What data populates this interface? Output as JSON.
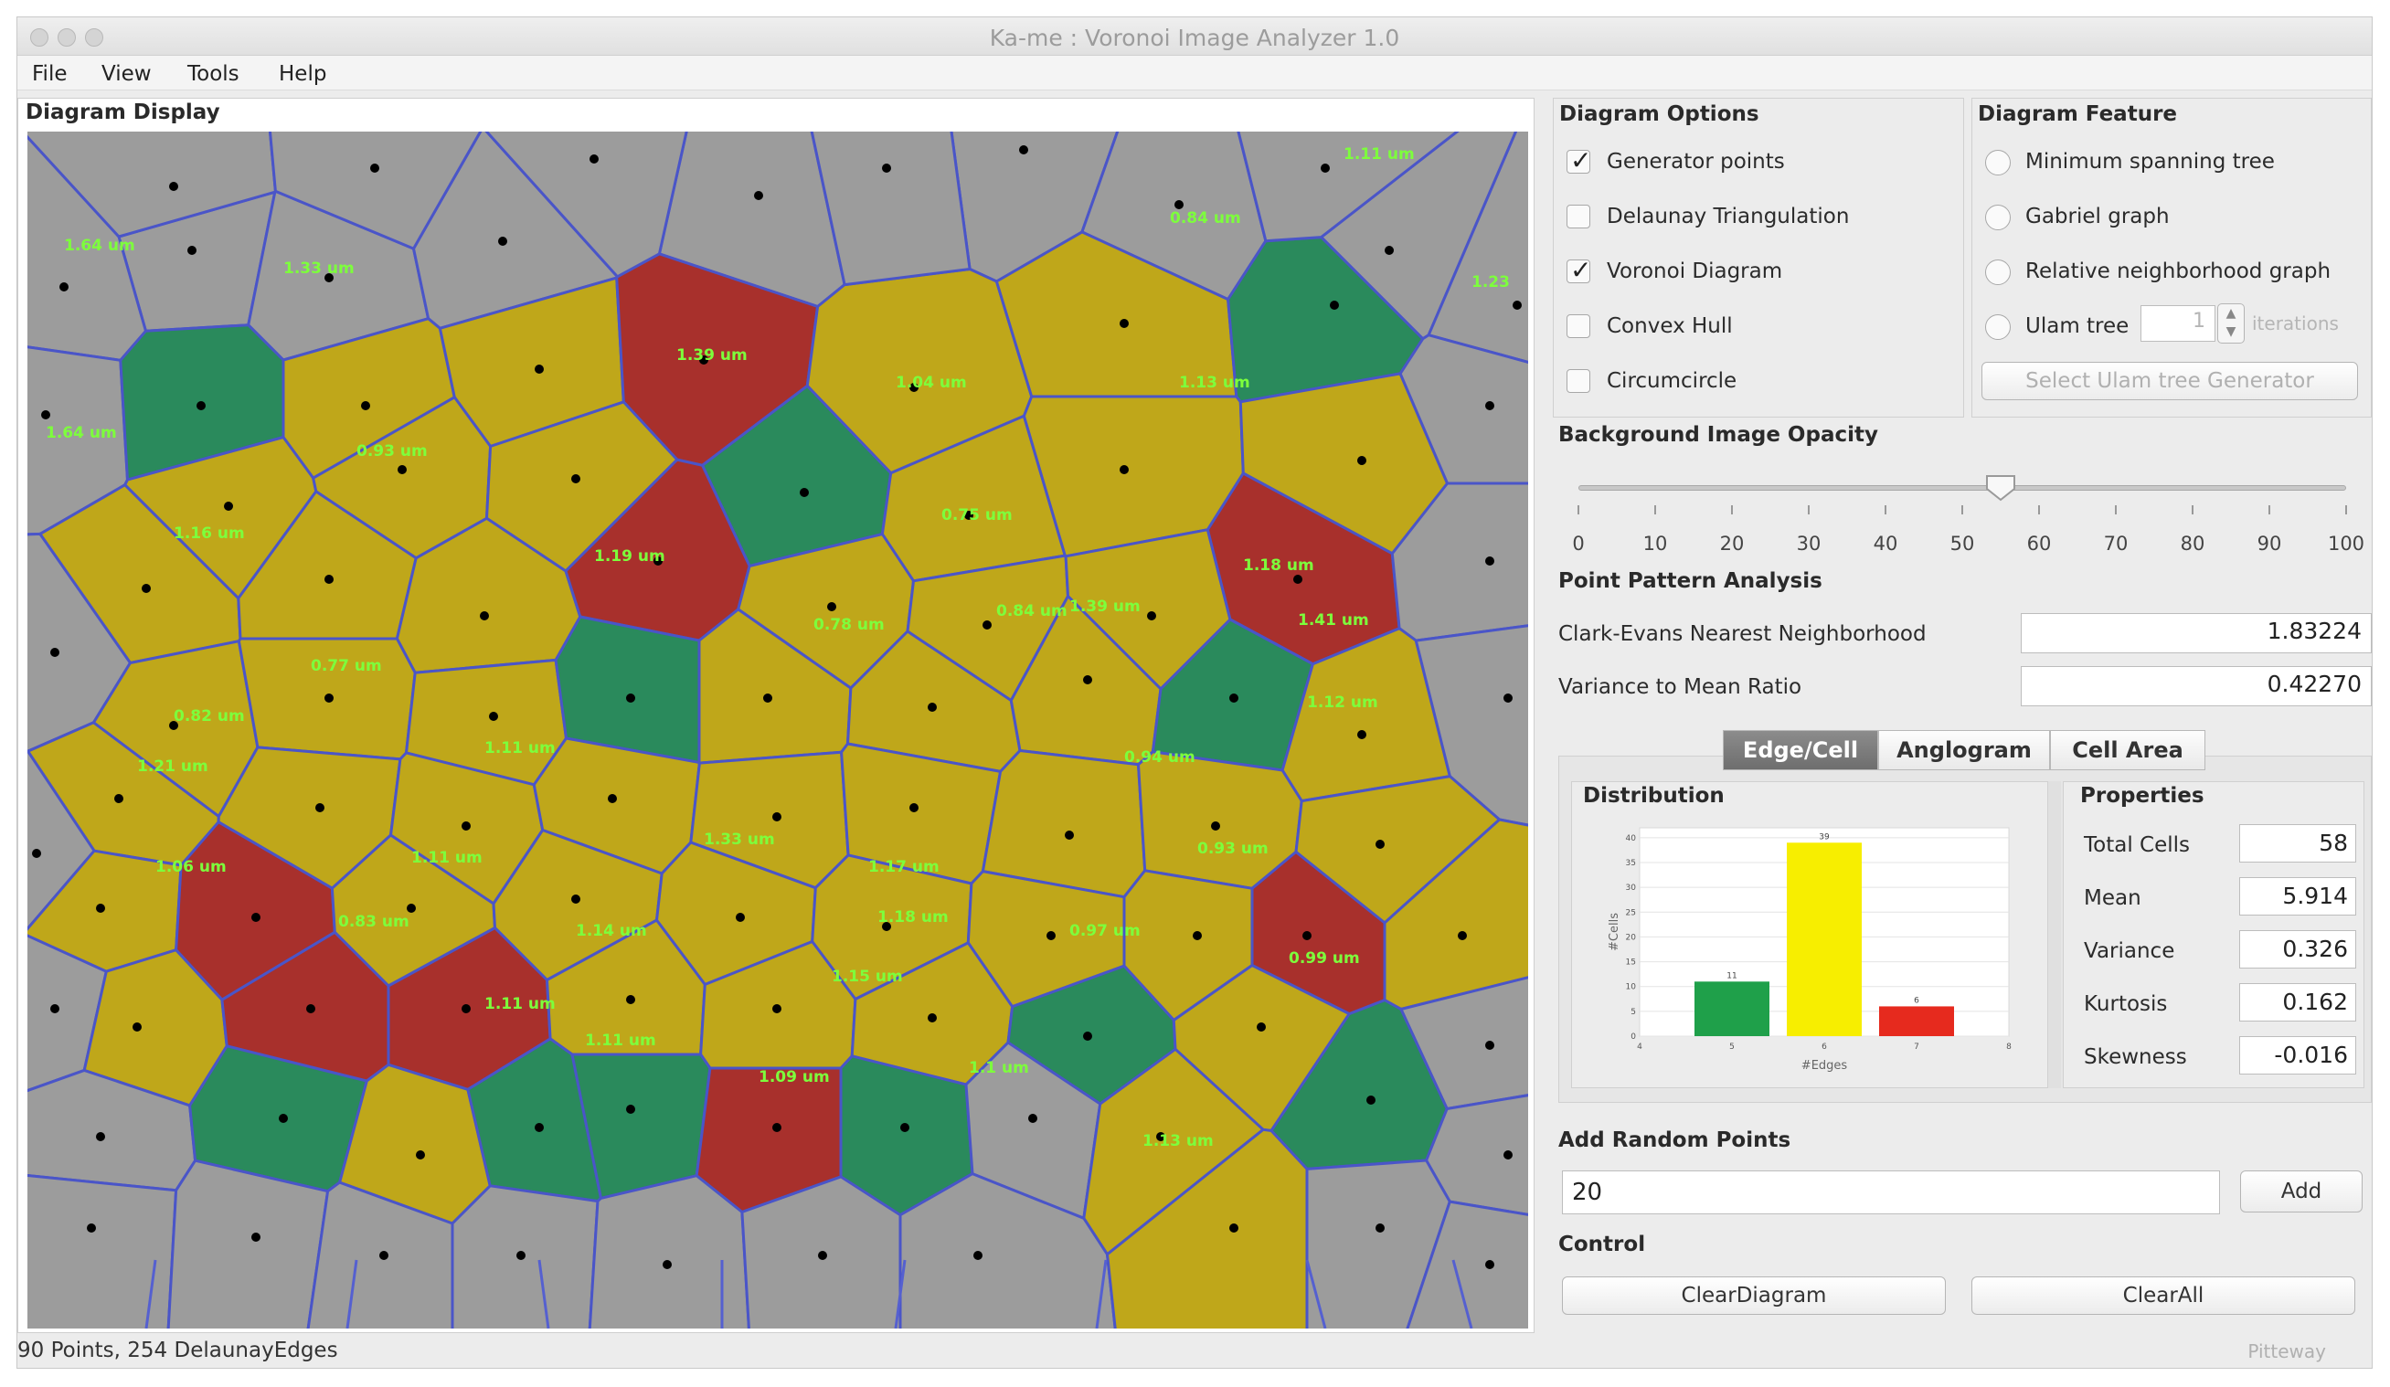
{
  "window": {
    "title": "Ka-me : Voronoi Image Analyzer 1.0"
  },
  "menubar": {
    "items": [
      "File",
      "View",
      "Tools",
      "Help"
    ]
  },
  "diagram_display": {
    "title": "Diagram Display",
    "cell_labels": [
      "1.64 um",
      "1.33 um",
      "1.11 um",
      "0.84 um",
      "1.23",
      "1.39 um",
      "1.04 um",
      "0.93 um",
      "1.16 um",
      "1.13 um",
      "0.75 um",
      "0.84 um",
      "1.64 um",
      "1.19 um",
      "1.18 um",
      "0.78 um",
      "1.39 um",
      "0.77 um",
      "1.12 um",
      "0.82 um",
      "1.11 um",
      "0.94 um",
      "1.33 um",
      "1.17 um",
      "1.06 um",
      "1.11 um",
      "0.93 um",
      "0.97 um",
      "1.14 um",
      "1.18 um",
      "0.99 um",
      "0.83 um",
      "1.11 um",
      "1.09 um",
      "1.1 um",
      "1.15 um",
      "1.13 um",
      "1.11 um",
      "1.21 um",
      "1.41 um"
    ]
  },
  "diagram_options": {
    "title": "Diagram Options",
    "items": [
      {
        "label": "Generator points",
        "checked": true
      },
      {
        "label": "Delaunay Triangulation",
        "checked": false
      },
      {
        "label": "Voronoi Diagram",
        "checked": true
      },
      {
        "label": "Convex Hull",
        "checked": false
      },
      {
        "label": "Circumcircle",
        "checked": false
      }
    ]
  },
  "diagram_feature": {
    "title": "Diagram Feature",
    "items": [
      {
        "label": "Minimum spanning tree",
        "selected": false
      },
      {
        "label": "Gabriel graph",
        "selected": false
      },
      {
        "label": "Relative neighborhood graph",
        "selected": false
      },
      {
        "label": "Ulam tree",
        "selected": false
      }
    ],
    "ulam_iterations_value": "1",
    "ulam_iterations_label": "iterations",
    "select_generator_button": "Select Ulam tree Generator"
  },
  "opacity": {
    "title": "Background Image Opacity",
    "value": 55,
    "ticks": [
      "0",
      "10",
      "20",
      "30",
      "40",
      "50",
      "60",
      "70",
      "80",
      "90",
      "100"
    ]
  },
  "point_pattern": {
    "title": "Point Pattern Analysis",
    "rows": [
      {
        "label": "Clark-Evans Nearest Neighborhood",
        "value": "1.83224"
      },
      {
        "label": "Variance to Mean Ratio",
        "value": "0.42270"
      }
    ]
  },
  "tabs": [
    {
      "label": "Edge/Cell",
      "active": true
    },
    {
      "label": "Anglogram",
      "active": false
    },
    {
      "label": "Cell Area",
      "active": false
    }
  ],
  "distribution": {
    "title": "Distribution",
    "ylabel": "#Cells",
    "xlabel": "#Edges",
    "bars": [
      {
        "category": "5",
        "value": 11,
        "color": "#1fa04a"
      },
      {
        "category": "6",
        "value": 39,
        "color": "#f7ee00"
      },
      {
        "category": "7",
        "value": 6,
        "color": "#e62a1e"
      }
    ]
  },
  "properties": {
    "title": "Properties",
    "rows": [
      {
        "label": "Total Cells",
        "value": "58"
      },
      {
        "label": "Mean",
        "value": "5.914"
      },
      {
        "label": "Variance",
        "value": "0.326"
      },
      {
        "label": "Kurtosis",
        "value": "0.162"
      },
      {
        "label": "Skewness",
        "value": "-0.016"
      }
    ]
  },
  "add_random_points": {
    "title": "Add Random Points",
    "value": "20",
    "button": "Add"
  },
  "control": {
    "title": "Control",
    "clear_diagram": "ClearDiagram",
    "clear_all": "ClearAll"
  },
  "status": {
    "text": "90 Points, 254 DelaunayEdges",
    "right": "Pitteway"
  },
  "colors": {
    "cell_green": "#2a8a5c",
    "cell_yellow": "#bfa71a",
    "cell_red": "#a8302c",
    "edge_blue": "#4a55c8",
    "background_gray": "#9e9e9e",
    "label_green": "#7dff3c"
  }
}
